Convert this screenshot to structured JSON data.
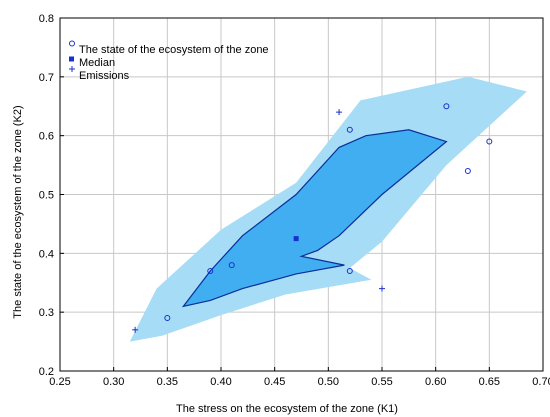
{
  "chart_data": {
    "type": "scatter",
    "xlabel": "The stress on the ecosystem of the zone (K1)",
    "ylabel": "The state of the ecosystem of the zone (K2)",
    "xlim": [
      0.25,
      0.7
    ],
    "ylim": [
      0.2,
      0.8
    ],
    "x_ticks": [
      "0.25",
      "0.30",
      "0.35",
      "0.40",
      "0.45",
      "0.50",
      "0.55",
      "0.60",
      "0.65",
      "0.70"
    ],
    "y_ticks": [
      "0.2",
      "0.3",
      "0.4",
      "0.5",
      "0.6",
      "0.7",
      "0.8"
    ],
    "grid": true,
    "legend_position": "top-left",
    "legend": [
      {
        "label": "The state of the ecosystem of the zone",
        "marker": "open-circle"
      },
      {
        "label": "Median",
        "marker": "filled-square"
      },
      {
        "label": "Emissions",
        "marker": "plus"
      }
    ],
    "colors": {
      "outer_region": "#a6dcf5",
      "inner_region": "#40aef0",
      "inner_outline": "#0a2f9a",
      "marker": "#1a2fd0",
      "grid": "#c8c8c8"
    },
    "series": [
      {
        "name": "The state of the ecosystem of the zone",
        "points": [
          [
            0.35,
            0.29
          ],
          [
            0.39,
            0.37
          ],
          [
            0.41,
            0.38
          ],
          [
            0.52,
            0.37
          ],
          [
            0.52,
            0.61
          ],
          [
            0.61,
            0.65
          ],
          [
            0.63,
            0.54
          ],
          [
            0.65,
            0.59
          ]
        ]
      },
      {
        "name": "Median",
        "points": [
          [
            0.47,
            0.425
          ]
        ]
      },
      {
        "name": "Emissions",
        "points": [
          [
            0.32,
            0.27
          ],
          [
            0.51,
            0.64
          ],
          [
            0.55,
            0.34
          ]
        ]
      }
    ],
    "regions": [
      {
        "kind": "outer",
        "polygon": [
          [
            0.315,
            0.25
          ],
          [
            0.34,
            0.34
          ],
          [
            0.4,
            0.44
          ],
          [
            0.47,
            0.52
          ],
          [
            0.53,
            0.66
          ],
          [
            0.63,
            0.7
          ],
          [
            0.685,
            0.675
          ],
          [
            0.61,
            0.55
          ],
          [
            0.55,
            0.42
          ],
          [
            0.52,
            0.375
          ],
          [
            0.54,
            0.355
          ],
          [
            0.46,
            0.33
          ],
          [
            0.4,
            0.295
          ],
          [
            0.345,
            0.26
          ],
          [
            0.315,
            0.25
          ]
        ]
      },
      {
        "kind": "inner",
        "polygon": [
          [
            0.365,
            0.31
          ],
          [
            0.39,
            0.37
          ],
          [
            0.42,
            0.43
          ],
          [
            0.47,
            0.5
          ],
          [
            0.51,
            0.58
          ],
          [
            0.535,
            0.6
          ],
          [
            0.575,
            0.61
          ],
          [
            0.61,
            0.59
          ],
          [
            0.55,
            0.5
          ],
          [
            0.51,
            0.43
          ],
          [
            0.49,
            0.405
          ],
          [
            0.475,
            0.395
          ],
          [
            0.515,
            0.38
          ],
          [
            0.47,
            0.365
          ],
          [
            0.42,
            0.34
          ],
          [
            0.39,
            0.32
          ],
          [
            0.365,
            0.31
          ]
        ]
      }
    ]
  }
}
